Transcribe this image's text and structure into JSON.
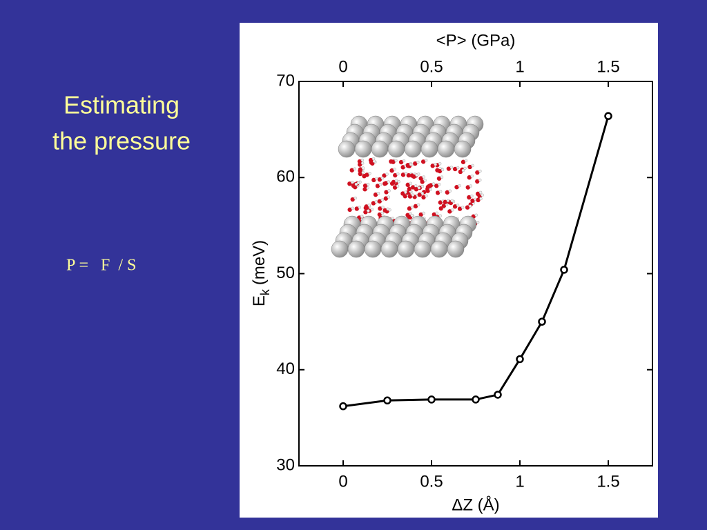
{
  "slide": {
    "title": [
      "Estimating",
      "the pressure"
    ],
    "formula": "P =   F  / S"
  },
  "chart_data": {
    "type": "line",
    "top_axis_label": "<P> (GPa)",
    "xlabel": "ΔZ (Å)",
    "ylabel": "E",
    "ylabel_sub": "k",
    "ylabel_unit": "(meV)",
    "x": [
      0,
      0.25,
      0.5,
      0.75,
      0.875,
      1,
      1.125,
      1.25,
      1.5
    ],
    "series": [
      {
        "color": "#000000",
        "values": [
          36.2,
          36.8,
          36.9,
          36.9,
          37.4,
          41.1,
          45.0,
          50.4,
          66.4
        ]
      }
    ],
    "xlim": [
      -0.25,
      1.75
    ],
    "xticks": [
      0,
      0.5,
      1,
      1.5
    ],
    "x2lim": [
      -0.25,
      1.75
    ],
    "x2ticks": [
      0,
      0.5,
      1,
      1.5
    ],
    "ylim": [
      30,
      70
    ],
    "yticks": [
      30,
      40,
      50,
      60,
      70
    ],
    "marker": "open-circle"
  }
}
